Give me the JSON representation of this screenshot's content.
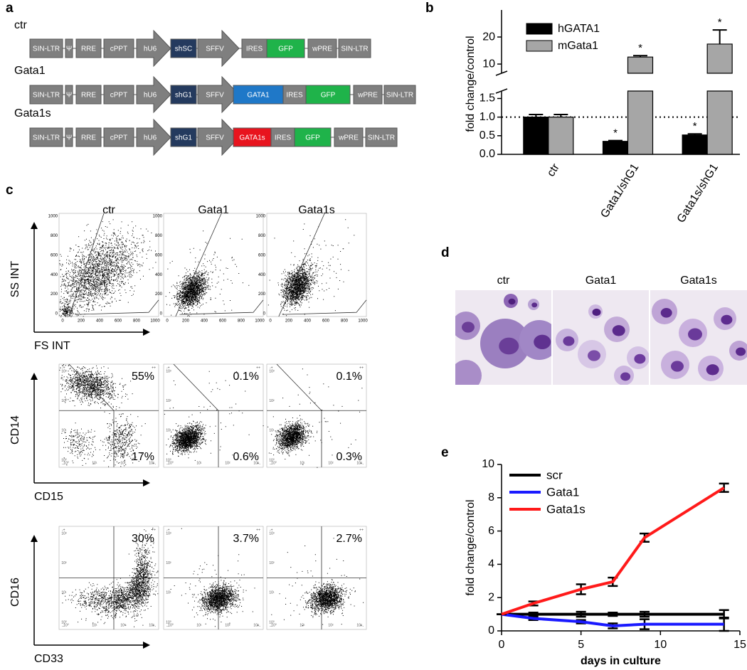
{
  "panel_labels": [
    "a",
    "b",
    "c",
    "d",
    "e"
  ],
  "vector_constructs": [
    {
      "name": "ctr",
      "elements": [
        {
          "label": "SIN-LTR",
          "color": "#7f7f7f",
          "shape": "box"
        },
        {
          "label": "Ψ",
          "color": "#7f7f7f",
          "shape": "box"
        },
        {
          "label": "RRE",
          "color": "#7f7f7f",
          "shape": "box"
        },
        {
          "label": "cPPT",
          "color": "#7f7f7f",
          "shape": "box"
        },
        {
          "label": "hU6",
          "color": "#7f7f7f",
          "shape": "arrow"
        },
        {
          "label": "shSC",
          "color": "#243a5e",
          "shape": "box"
        },
        {
          "label": "SFFV",
          "color": "#7f7f7f",
          "shape": "arrow"
        },
        {
          "label": "IRES",
          "color": "#7f7f7f",
          "shape": "box"
        },
        {
          "label": "GFP",
          "color": "#1fb34a",
          "shape": "box"
        },
        {
          "label": "wPRE",
          "color": "#7f7f7f",
          "shape": "box"
        },
        {
          "label": "SIN-LTR",
          "color": "#7f7f7f",
          "shape": "box"
        }
      ]
    },
    {
      "name": "Gata1",
      "elements": [
        {
          "label": "SIN-LTR",
          "color": "#7f7f7f",
          "shape": "box"
        },
        {
          "label": "Ψ",
          "color": "#7f7f7f",
          "shape": "box"
        },
        {
          "label": "RRE",
          "color": "#7f7f7f",
          "shape": "box"
        },
        {
          "label": "cPPT",
          "color": "#7f7f7f",
          "shape": "box"
        },
        {
          "label": "hU6",
          "color": "#7f7f7f",
          "shape": "arrow"
        },
        {
          "label": "shG1",
          "color": "#243a5e",
          "shape": "box"
        },
        {
          "label": "SFFV",
          "color": "#7f7f7f",
          "shape": "arrow"
        },
        {
          "label": "GATA1",
          "color": "#1f78c8",
          "shape": "box"
        },
        {
          "label": "IRES",
          "color": "#7f7f7f",
          "shape": "box"
        },
        {
          "label": "GFP",
          "color": "#1fb34a",
          "shape": "box"
        },
        {
          "label": "wPRE",
          "color": "#7f7f7f",
          "shape": "box"
        },
        {
          "label": "SIN-LTR",
          "color": "#7f7f7f",
          "shape": "box"
        }
      ]
    },
    {
      "name": "Gata1s",
      "elements": [
        {
          "label": "SIN-LTR",
          "color": "#7f7f7f",
          "shape": "box"
        },
        {
          "label": "Ψ",
          "color": "#7f7f7f",
          "shape": "box"
        },
        {
          "label": "RRE",
          "color": "#7f7f7f",
          "shape": "box"
        },
        {
          "label": "cPPT",
          "color": "#7f7f7f",
          "shape": "box"
        },
        {
          "label": "hU6",
          "color": "#7f7f7f",
          "shape": "arrow"
        },
        {
          "label": "shG1",
          "color": "#243a5e",
          "shape": "box"
        },
        {
          "label": "SFFV",
          "color": "#7f7f7f",
          "shape": "arrow"
        },
        {
          "label": "GATA1s",
          "color": "#e8141e",
          "shape": "box"
        },
        {
          "label": "IRES",
          "color": "#7f7f7f",
          "shape": "box"
        },
        {
          "label": "GFP",
          "color": "#1fb34a",
          "shape": "box"
        },
        {
          "label": "wPRE",
          "color": "#7f7f7f",
          "shape": "box"
        },
        {
          "label": "SIN-LTR",
          "color": "#7f7f7f",
          "shape": "box"
        }
      ]
    }
  ],
  "flow_cytometry": {
    "columns": [
      "ctr",
      "Gata1",
      "Gata1s"
    ],
    "rows": [
      {
        "y_label": "SS INT",
        "x_label": "FS INT",
        "scale": "linear"
      },
      {
        "y_label": "CD14",
        "x_label": "CD15",
        "scale": "log",
        "percentages": [
          [
            "55%",
            "17%"
          ],
          [
            "0.1%",
            "0.6%"
          ],
          [
            "0.1%",
            "0.3%"
          ]
        ]
      },
      {
        "y_label": "CD16",
        "x_label": "CD33",
        "scale": "log",
        "percentages": [
          [
            "30%"
          ],
          [
            "3.7%"
          ],
          [
            "2.7%"
          ]
        ]
      }
    ],
    "linear_ticks": [
      0,
      200,
      400,
      600,
      800,
      1000
    ],
    "log_ticks": [
      "10⁰",
      "10¹",
      "10²",
      "10³"
    ],
    "quadrant_labels": [
      "-+",
      "++",
      "--",
      "+-"
    ]
  },
  "morphology": {
    "columns": [
      "ctr",
      "Gata1",
      "Gata1s"
    ]
  },
  "chart_data": [
    {
      "type": "bar",
      "y_label": "fold change/control",
      "categories": [
        "ctr",
        "Gata1/shG1",
        "Gata1s/shG1"
      ],
      "series": [
        {
          "name": "hGATA1",
          "color": "#000000",
          "values": [
            1.0,
            0.35,
            0.52
          ],
          "errors": [
            0.07,
            0.02,
            0.03
          ],
          "annotations": [
            null,
            "*",
            "*"
          ]
        },
        {
          "name": "mGata1",
          "color": "#a6a6a6",
          "values": [
            1.0,
            12.6,
            17.4
          ],
          "errors": [
            0.07,
            0.5,
            5.2
          ],
          "annotations": [
            null,
            "*",
            "*"
          ]
        }
      ],
      "y_segments": [
        {
          "ylim": [
            0,
            1.7
          ],
          "yticks": [
            {
              "value": 0,
              "label": "0.0"
            },
            0.5,
            {
              "value": 1,
              "label": "1.0"
            },
            1.5
          ]
        },
        {
          "ylim": [
            6.6,
            30
          ],
          "yticks": [
            10,
            20
          ]
        }
      ],
      "reference_line": 1,
      "legend": "upper left"
    },
    {
      "type": "line",
      "x_label": "days in culture",
      "y_label": "fold change/control",
      "x": [
        0,
        2,
        5,
        7,
        9,
        14
      ],
      "xlim": [
        0,
        15
      ],
      "xticks": [
        0,
        5,
        10,
        15
      ],
      "ylim": [
        0,
        10
      ],
      "yticks": [
        0,
        2,
        4,
        6,
        8,
        10
      ],
      "series": [
        {
          "name": "scr",
          "color": "#000000",
          "values": [
            1,
            1,
            1,
            1,
            1,
            1
          ],
          "errors": [
            0,
            0.1,
            0.15,
            0.1,
            0.15,
            0.25
          ]
        },
        {
          "name": "Gata1",
          "color": "#1a1aff",
          "values": [
            1,
            0.75,
            0.55,
            0.3,
            0.4,
            0.4
          ],
          "errors": [
            0,
            0.1,
            0.1,
            0.15,
            0.3,
            0.4
          ]
        },
        {
          "name": "Gata1s",
          "color": "#ff1a1a",
          "values": [
            1,
            1.65,
            2.5,
            2.95,
            5.6,
            8.6
          ],
          "errors": [
            0,
            0.12,
            0.3,
            0.25,
            0.25,
            0.25
          ]
        }
      ],
      "legend": "upper left"
    }
  ]
}
